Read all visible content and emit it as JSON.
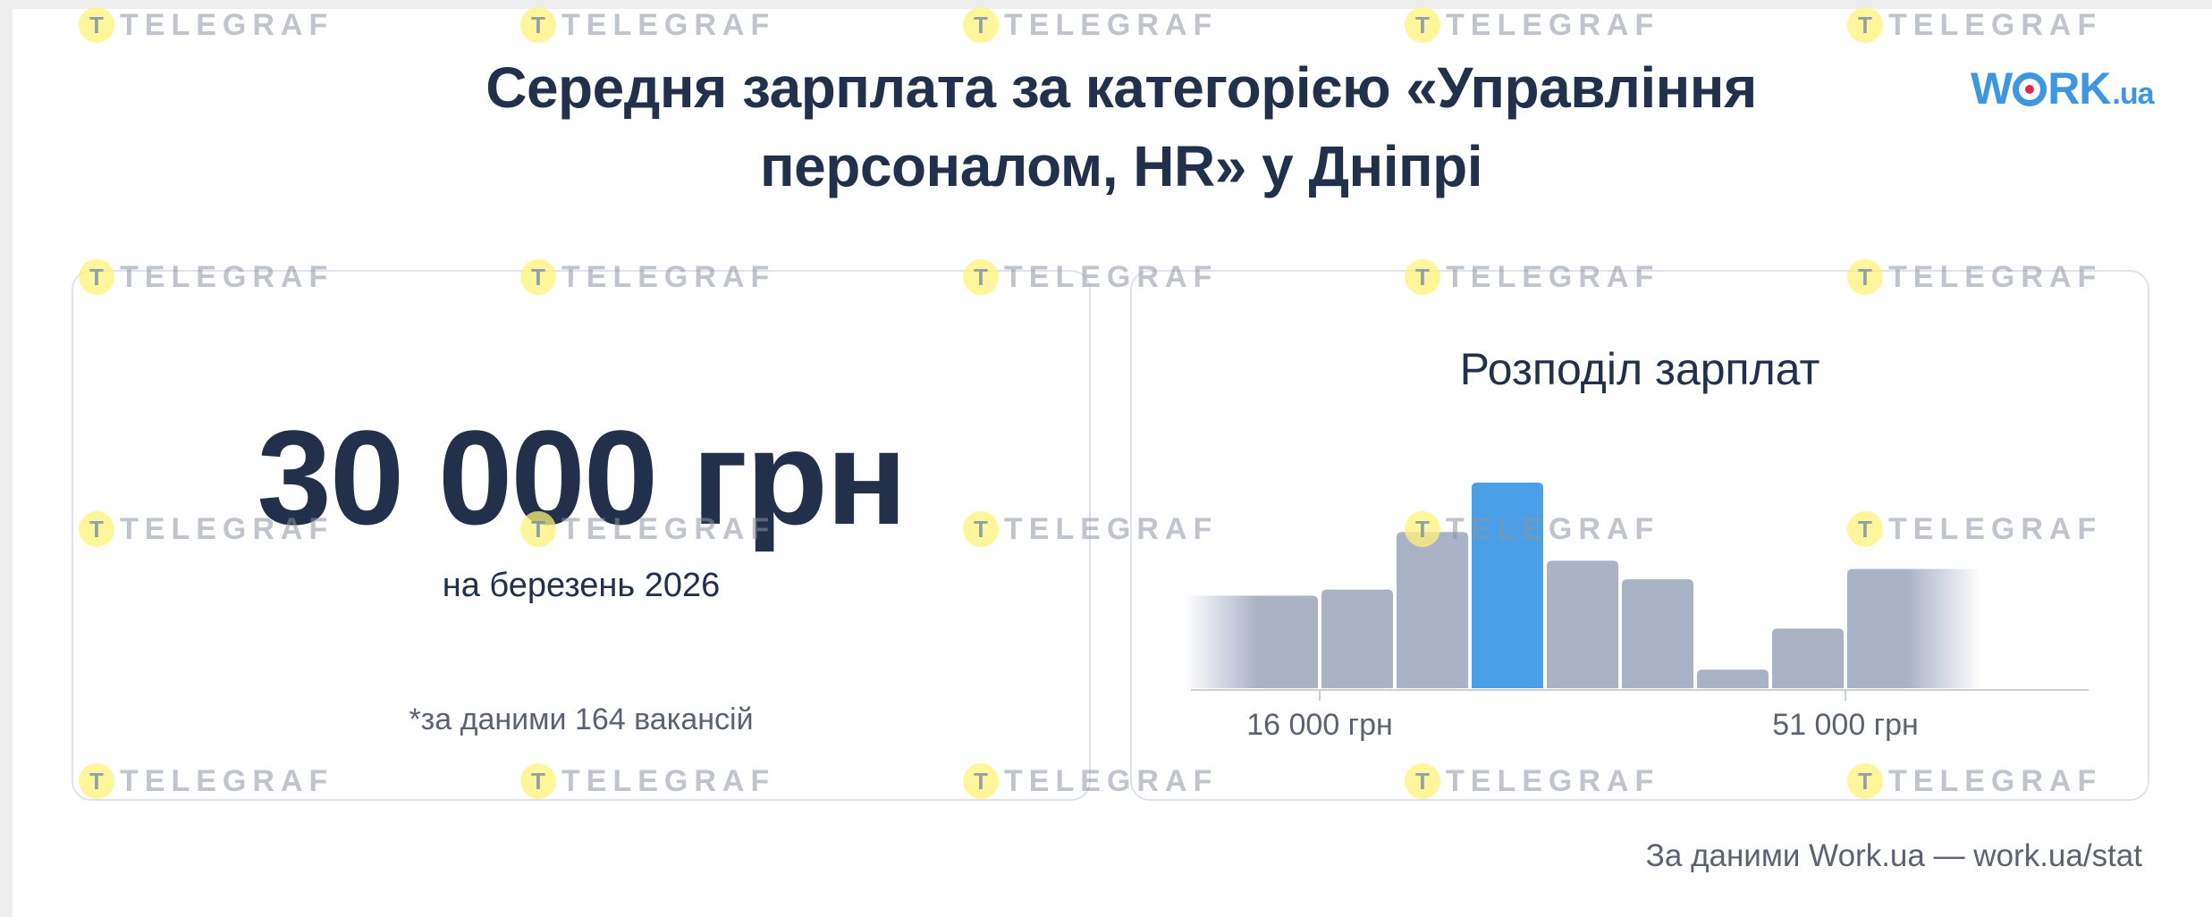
{
  "title": {
    "line1": "Середня зарплата за категорією «Управління",
    "line2": "персоналом, HR» у Дніпрі"
  },
  "logo": {
    "w": "W",
    "rk": "RK",
    "ua": ".ua"
  },
  "summary": {
    "value": "30 000 грн",
    "date": "на березень 2026",
    "note": "*за даними 164 вакансій"
  },
  "watermark": {
    "text": "TELEGRAF",
    "icon": "telegraf-t-icon"
  },
  "colors": {
    "bar": "#aab3c6",
    "highlight": "#4a9fe6",
    "text": "#22304b",
    "logo": "#3e95e0"
  },
  "source": "За даними Work.ua — work.ua/stat",
  "chart_data": {
    "type": "bar",
    "title": "Розподіл зарплат",
    "x_tick_labels": [
      "16 000 грн",
      "51 000 грн"
    ],
    "bins": [
      {
        "value": 45,
        "highlight": false,
        "fade": "left"
      },
      {
        "value": 48,
        "highlight": false
      },
      {
        "value": 76,
        "highlight": false
      },
      {
        "value": 100,
        "highlight": true
      },
      {
        "value": 62,
        "highlight": false
      },
      {
        "value": 53,
        "highlight": false
      },
      {
        "value": 9,
        "highlight": false
      },
      {
        "value": 29,
        "highlight": false
      },
      {
        "value": 58,
        "highlight": false,
        "fade": "right"
      }
    ],
    "ylim": [
      0,
      100
    ],
    "grid": false,
    "legend": "none"
  }
}
